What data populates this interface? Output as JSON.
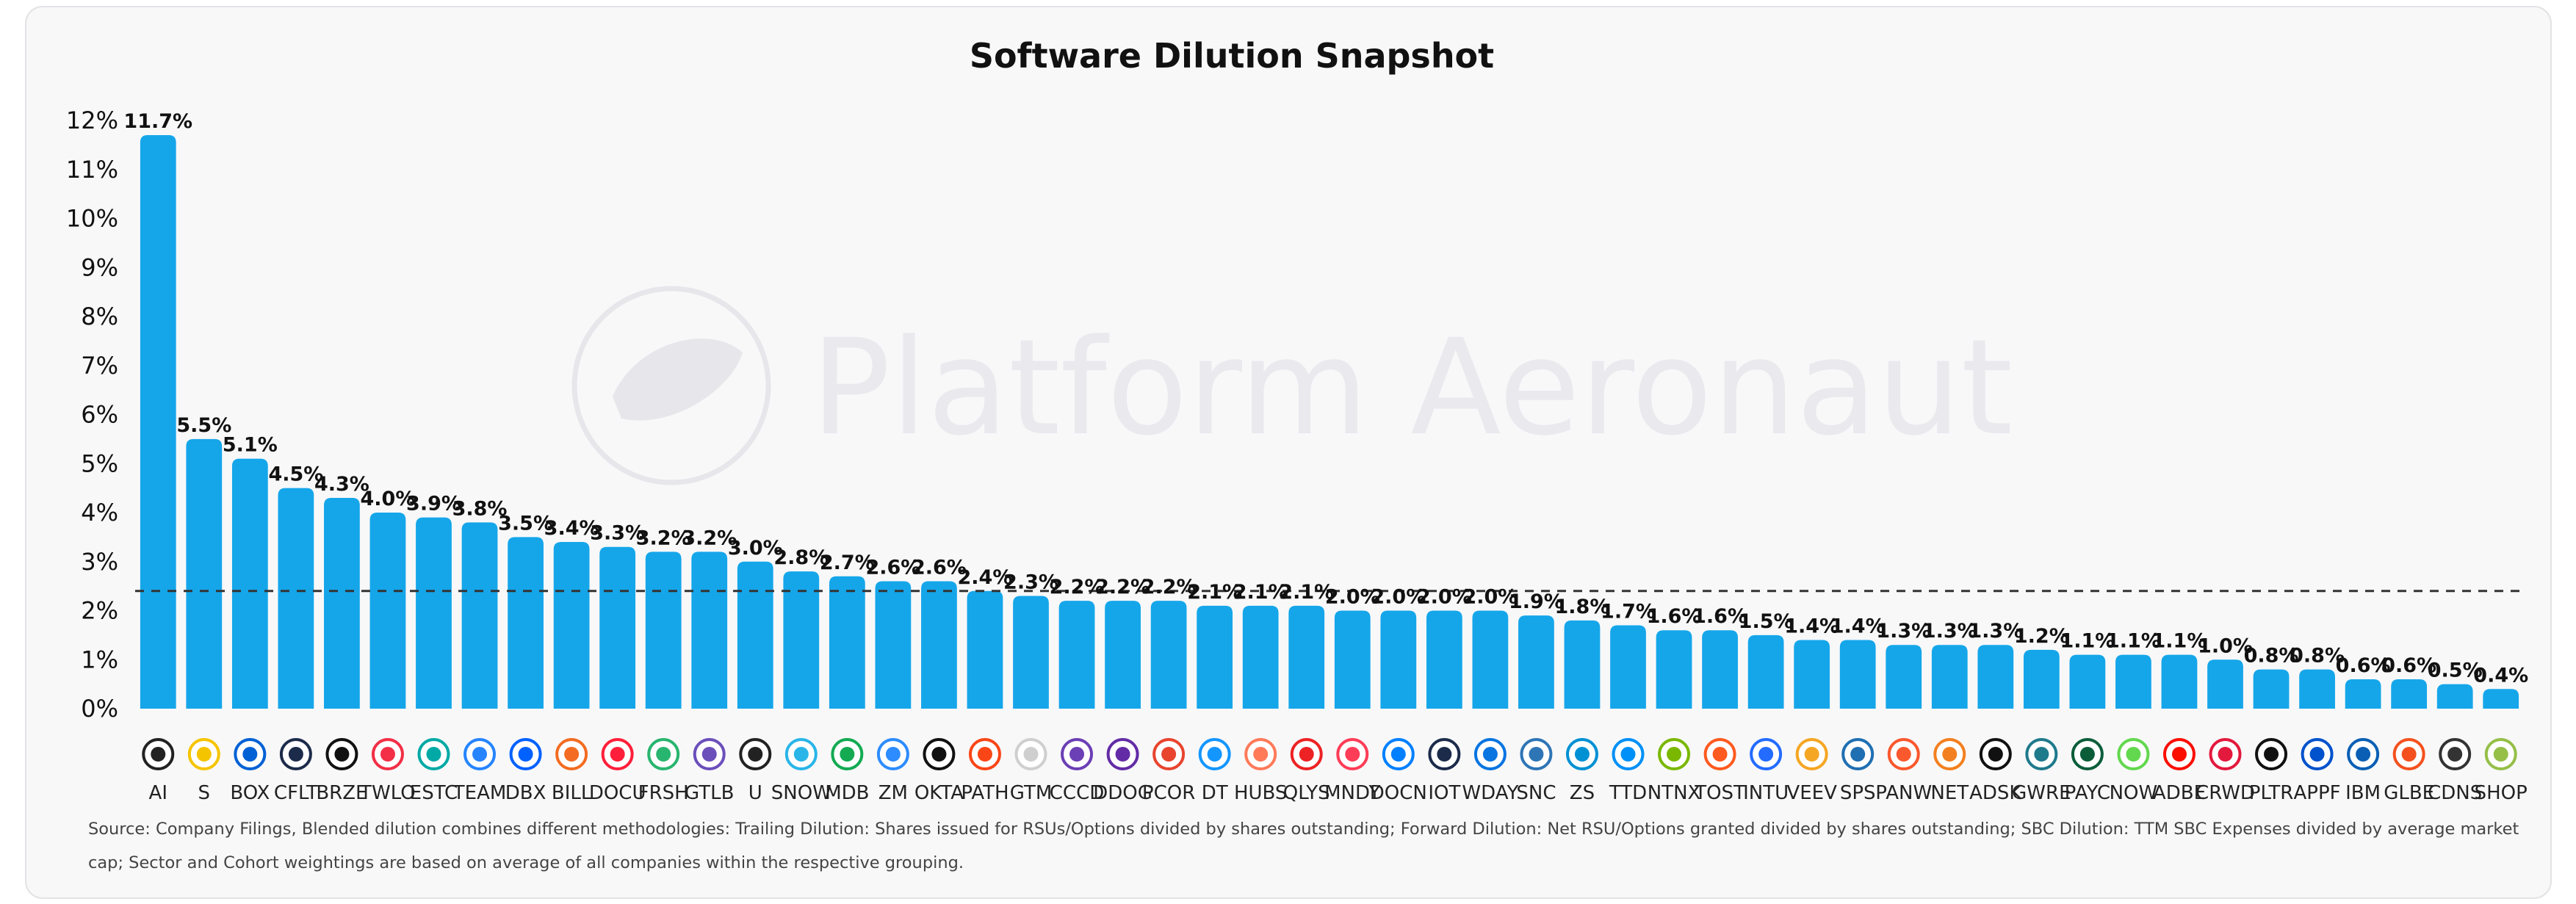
{
  "watermark": "Platform Aeronaut",
  "source_note": "Source: Company Filings, Blended dilution combines different methodologies: Trailing Dilution: Shares issued for RSUs/Options divided by shares outstanding; Forward Dilution: Net RSU/Options granted divided by shares outstanding; SBC Dilution: TTM SBC Expenses divided by average market cap; Sector and Cohort weightings are based on average of all companies within the respective grouping.",
  "colors": {
    "bar": "#15a6ea",
    "reference_line": "#333333",
    "card_bg": "#f8f8f9"
  },
  "chart_data": {
    "type": "bar",
    "title": "Software Dilution Snapshot",
    "xlabel": "",
    "ylabel": "",
    "ylim": [
      0,
      12
    ],
    "y_ticks": [
      "0%",
      "1%",
      "2%",
      "3%",
      "4%",
      "5%",
      "6%",
      "7%",
      "8%",
      "9%",
      "10%",
      "11%",
      "12%"
    ],
    "grid": false,
    "legend": "none",
    "reference_line": {
      "value": 2.4,
      "style": "dashed"
    },
    "categories": [
      "AI",
      "S",
      "BOX",
      "CFLT",
      "BRZE",
      "TWLO",
      "ESTC",
      "TEAM",
      "DBX",
      "BILL",
      "DOCU",
      "FRSH",
      "GTLB",
      "U",
      "SNOW",
      "MDB",
      "ZM",
      "OKTA",
      "PATH",
      "GTM",
      "CCCD",
      "DDOG",
      "PCOR",
      "DT",
      "HUBS",
      "QLYS",
      "MNDY",
      "DOCN",
      "IOT",
      "WDAY",
      "SNC",
      "ZS",
      "TTD",
      "NTNX",
      "TOST",
      "INTU",
      "VEEV",
      "SPS",
      "PANW",
      "NET",
      "ADSK",
      "GWRE",
      "PAYC",
      "NOW",
      "ADBE",
      "CRWD",
      "PLTR",
      "APPF",
      "IBM",
      "GLBE",
      "CDNS",
      "SHOP"
    ],
    "values": [
      11.7,
      5.5,
      5.1,
      4.5,
      4.3,
      4.0,
      3.9,
      3.8,
      3.5,
      3.4,
      3.3,
      3.2,
      3.2,
      3.0,
      2.8,
      2.7,
      2.6,
      2.6,
      2.4,
      2.3,
      2.2,
      2.2,
      2.2,
      2.1,
      2.1,
      2.1,
      2.0,
      2.0,
      2.0,
      2.0,
      1.9,
      1.8,
      1.7,
      1.6,
      1.6,
      1.5,
      1.4,
      1.4,
      1.3,
      1.3,
      1.3,
      1.2,
      1.1,
      1.1,
      1.1,
      1.0,
      0.8,
      0.8,
      0.6,
      0.6,
      0.5,
      0.4
    ],
    "data_labels": [
      "11.7%",
      "5.5%",
      "5.1%",
      "4.5%",
      "4.3%",
      "4.0%",
      "3.9%",
      "3.8%",
      "3.5%",
      "3.4%",
      "3.3%",
      "3.2%",
      "3.2%",
      "3.0%",
      "2.8%",
      "2.7%",
      "2.6%",
      "2.6%",
      "2.4%",
      "2.3%",
      "2.2%",
      "2.2%",
      "2.2%",
      "2.1%",
      "2.1%",
      "2.1%",
      "2.0%",
      "2.0%",
      "2.0%",
      "2.0%",
      "1.9%",
      "1.8%",
      "1.7%",
      "1.6%",
      "1.6%",
      "1.5%",
      "1.4%",
      "1.4%",
      "1.3%",
      "1.3%",
      "1.3%",
      "1.2%",
      "1.1%",
      "1.1%",
      "1.1%",
      "1.0%",
      "0.8%",
      "0.8%",
      "0.6%",
      "0.6%",
      "0.5%",
      "0.4%"
    ],
    "logo_colors": [
      "#222222",
      "#f5c400",
      "#0061d5",
      "#1c2b4a",
      "#111111",
      "#f22f46",
      "#00a9a5",
      "#2684ff",
      "#0061fe",
      "#f36c21",
      "#ff1f3a",
      "#28b56f",
      "#6b4fbb",
      "#222222",
      "#29b5e8",
      "#13aa52",
      "#2d8cff",
      "#111111",
      "#fa4616",
      "#cfcfcf",
      "#6b3fb5",
      "#632ca6",
      "#e8442e",
      "#1496ff",
      "#ff7a59",
      "#ed2224",
      "#ff3d57",
      "#0080ff",
      "#1c2b4a",
      "#0875e1",
      "#2e75b6",
      "#0090d4",
      "#0090f7",
      "#7ab800",
      "#ff5a1f",
      "#236cff",
      "#f5a623",
      "#1f6fb2",
      "#fa582d",
      "#f38020",
      "#111111",
      "#1f7a8c",
      "#0b5d3a",
      "#62d84e",
      "#fa0f00",
      "#e3193d",
      "#111111",
      "#0052cc",
      "#0a5fb4",
      "#f4511e",
      "#333333",
      "#95bf47"
    ]
  }
}
